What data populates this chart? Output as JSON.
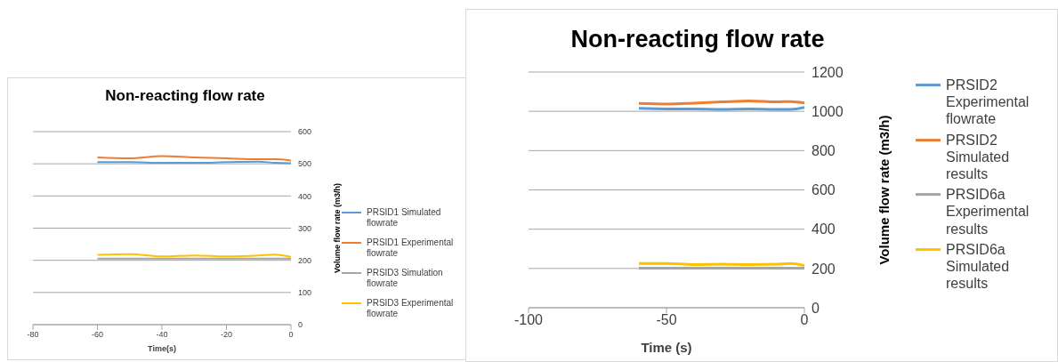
{
  "chart_data": [
    {
      "type": "line",
      "title": "Non-reacting flow rate",
      "xlabel": "Time(s)",
      "ylabel": "Volume flow rate (m3/h)",
      "x": [
        -60,
        -50,
        -40,
        -30,
        -20,
        -10,
        -5,
        0
      ],
      "xlim": [
        -80,
        0
      ],
      "xticks": [
        -80,
        -60,
        -40,
        -20,
        0
      ],
      "ylim": [
        0,
        600
      ],
      "yticks": [
        0,
        100,
        200,
        300,
        400,
        500,
        600
      ],
      "grid": "y",
      "legend": "right",
      "marker": "none",
      "series": [
        {
          "name": "PRSID1 Simulated flowrate",
          "color": "#5b9bd5",
          "values": [
            505,
            505,
            503,
            503,
            505,
            507,
            503,
            502
          ]
        },
        {
          "name": "PRSID1 Experimental flowrate",
          "color": "#ed7d31",
          "values": [
            520,
            517,
            524,
            520,
            517,
            514,
            514,
            510
          ]
        },
        {
          "name": "PRSID3 Simulation flowrate",
          "color": "#a5a5a5",
          "values": [
            205,
            205,
            205,
            205,
            205,
            205,
            205,
            205
          ]
        },
        {
          "name": "PRSID3 Experimental flowrate",
          "color": "#ffc000",
          "values": [
            217,
            219,
            212,
            215,
            212,
            215,
            218,
            211
          ]
        }
      ]
    },
    {
      "type": "line",
      "title": "Non-reacting flow rate",
      "xlabel": "Time (s)",
      "ylabel": "Volume flow rate (m3/h)",
      "x": [
        -60,
        -50,
        -40,
        -30,
        -20,
        -10,
        -5,
        0
      ],
      "xlim": [
        -100,
        0
      ],
      "xticks": [
        -100,
        -50,
        0
      ],
      "ylim": [
        0,
        1200
      ],
      "yticks": [
        0,
        200,
        400,
        600,
        800,
        1000,
        1200
      ],
      "grid": "y",
      "legend": "right",
      "marker": "none",
      "series": [
        {
          "name": "PRSID2 Experimental flowrate",
          "color": "#5b9bd5",
          "values": [
            1015,
            1012,
            1012,
            1010,
            1012,
            1010,
            1010,
            1020
          ]
        },
        {
          "name": "PRSID2 Simulated results",
          "color": "#ed7d31",
          "values": [
            1040,
            1037,
            1042,
            1048,
            1053,
            1048,
            1050,
            1043
          ]
        },
        {
          "name": "PRSID6a Experimental results",
          "color": "#a5a5a5",
          "values": [
            202,
            202,
            202,
            202,
            202,
            202,
            202,
            202
          ]
        },
        {
          "name": "PRSID6a Simulated results",
          "color": "#ffc000",
          "values": [
            225,
            225,
            220,
            222,
            220,
            222,
            225,
            215
          ]
        }
      ]
    }
  ]
}
